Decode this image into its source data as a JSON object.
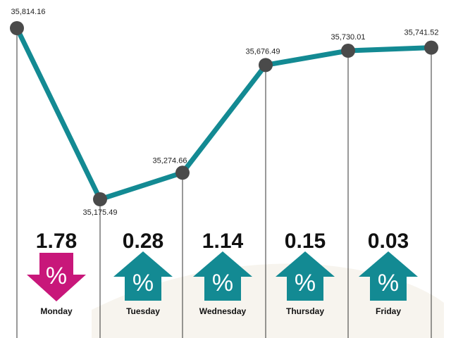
{
  "chart_data": {
    "type": "line",
    "title": "",
    "xlabel": "",
    "ylabel": "",
    "grid": false,
    "x": [
      "",
      "Monday",
      "Tuesday",
      "Wednesday",
      "Thursday",
      "Friday"
    ],
    "values": [
      35814.16,
      35175.49,
      35274.66,
      35676.49,
      35730.01,
      35741.52
    ],
    "value_labels": [
      "35,814.16",
      "35,175.49",
      "35,274.66",
      "35,676.49",
      "35,730.01",
      "35,741.52"
    ],
    "ylim": [
      35175.49,
      35814.16
    ],
    "daily_change": [
      {
        "day": "Monday",
        "change": "1.78",
        "direction": "down",
        "symbol": "%"
      },
      {
        "day": "Tuesday",
        "change": "0.28",
        "direction": "up",
        "symbol": "%"
      },
      {
        "day": "Wednesday",
        "change": "1.14",
        "direction": "up",
        "symbol": "%"
      },
      {
        "day": "Thursday",
        "change": "0.15",
        "direction": "up",
        "symbol": "%"
      },
      {
        "day": "Friday",
        "change": "0.03",
        "direction": "up",
        "symbol": "%"
      }
    ]
  },
  "colors": {
    "line": "#138a93",
    "marker": "#4a4a4a",
    "up": "#138a93",
    "down": "#c8177a",
    "divider": "#333333",
    "background": "#ffffff"
  }
}
